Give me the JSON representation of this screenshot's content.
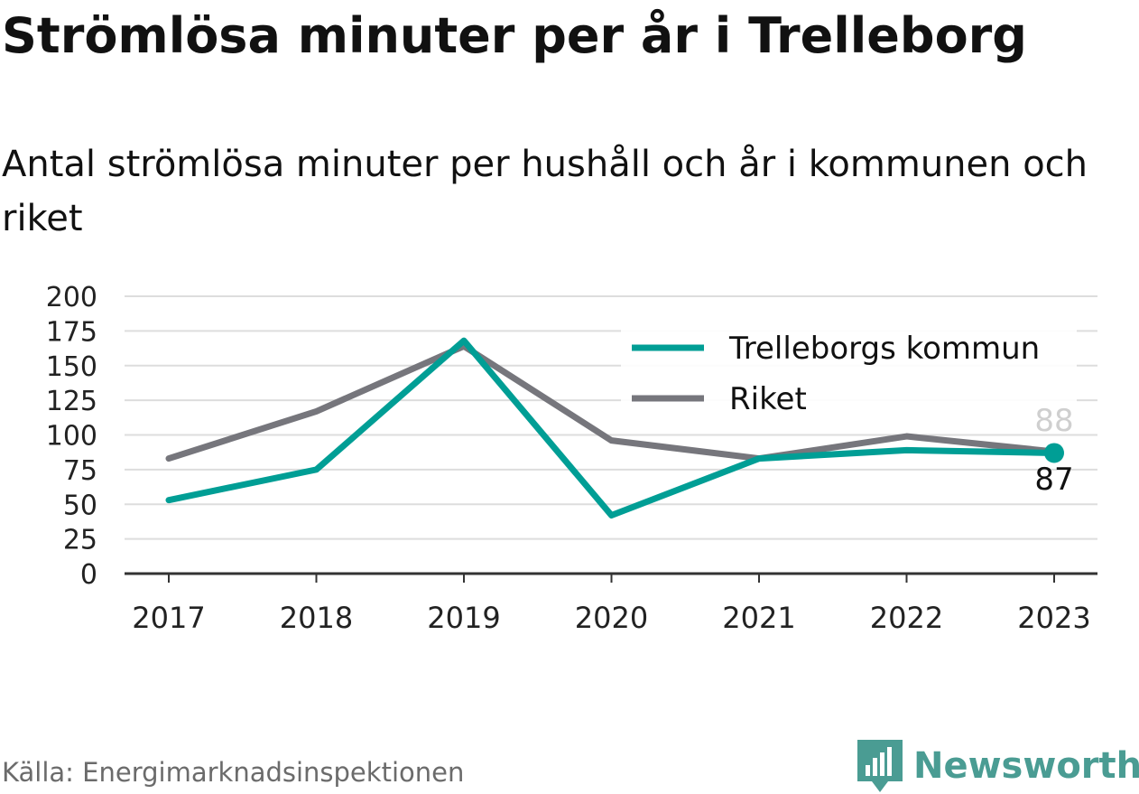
{
  "title": "Strömlösa minuter per år i Trelleborg",
  "subtitle": "Antal strömlösa minuter per hushåll och år i kommunen och riket",
  "source": "Källa: Energimarknadsinspektionen",
  "brand": {
    "name": "Newsworthy",
    "icon": "newsworthy-logo-icon",
    "color": "#4a9c93"
  },
  "chart_data": {
    "type": "line",
    "x": [
      "2017",
      "2018",
      "2019",
      "2020",
      "2021",
      "2022",
      "2023"
    ],
    "yticks": [
      "0",
      "25",
      "50",
      "75",
      "100",
      "125",
      "150",
      "175",
      "200"
    ],
    "ylim": [
      0,
      200
    ],
    "grid": true,
    "legend_position": "top-right",
    "series": [
      {
        "name": "Trelleborgs kommun",
        "color": "#009e95",
        "values": [
          53,
          75,
          168,
          42,
          83,
          89,
          87
        ]
      },
      {
        "name": "Riket",
        "color": "#76767c",
        "values": [
          83,
          117,
          164,
          96,
          83,
          99,
          88
        ]
      }
    ],
    "end_labels": {
      "primary": "87",
      "secondary": "88"
    }
  }
}
